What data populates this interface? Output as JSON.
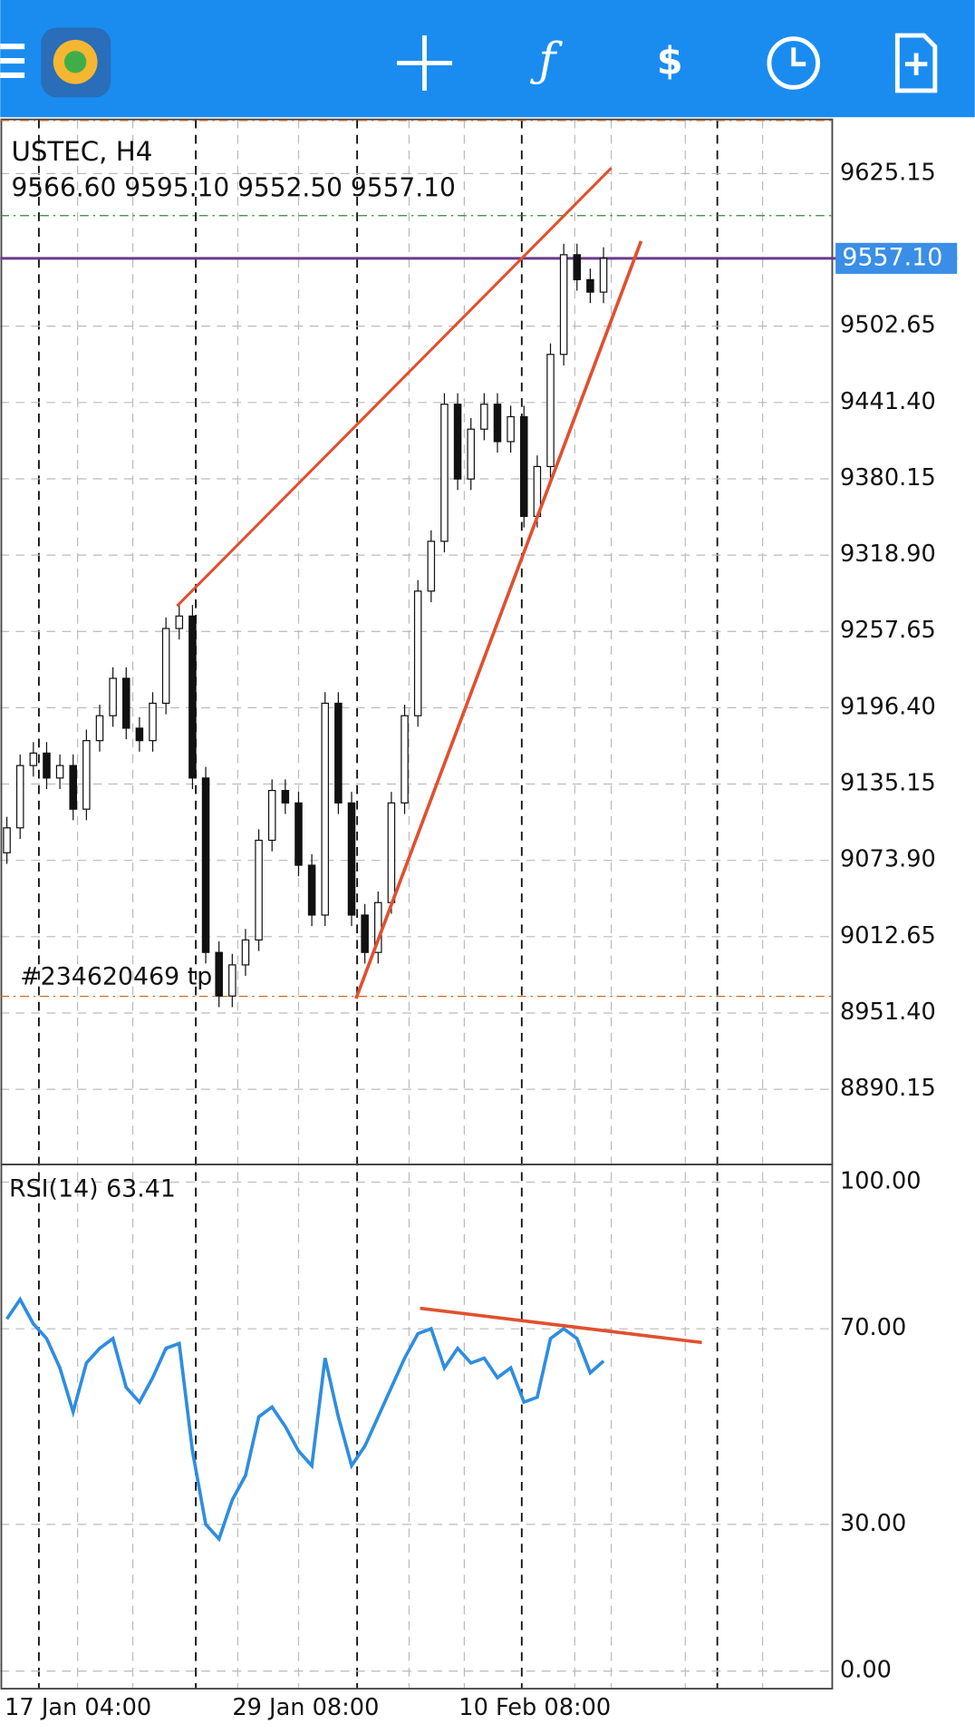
{
  "symbol_label": "USTEC, H4",
  "ohlc_label": "9566.60 9595.10 9552.50 9557.10",
  "order_label": "#234620469 tp",
  "price_panel": {
    "type": "candlestick",
    "ylim": [
      8829.8,
      9668.6
    ],
    "yticks": [
      {
        "value": 9625.15,
        "label": "9625.15"
      },
      {
        "value": 9502.65,
        "label": "9502.65"
      },
      {
        "value": 9441.4,
        "label": "9441.40"
      },
      {
        "value": 9380.15,
        "label": "9380.15"
      },
      {
        "value": 9318.9,
        "label": "9318.90"
      },
      {
        "value": 9257.65,
        "label": "9257.65"
      },
      {
        "value": 9196.4,
        "label": "9196.40"
      },
      {
        "value": 9135.15,
        "label": "9135.15"
      },
      {
        "value": 9073.9,
        "label": "9073.90"
      },
      {
        "value": 9012.65,
        "label": "9012.65"
      },
      {
        "value": 8951.4,
        "label": "8951.40"
      },
      {
        "value": 8890.15,
        "label": "8890.15"
      }
    ],
    "current_price": {
      "value": 9557.1,
      "label": "9557.10"
    },
    "open": [
      9080,
      9100,
      9150,
      9160,
      9140,
      9150,
      9115,
      9170,
      9190,
      9220,
      9180,
      9170,
      9200,
      9260,
      9270,
      9140,
      9000,
      8965,
      8990,
      9010,
      9090,
      9130,
      9120,
      9070,
      9030,
      9200,
      9120,
      9030,
      9000,
      9040,
      9120,
      9190,
      9290,
      9330,
      9440,
      9380,
      9420,
      9440,
      9410,
      9430,
      9350,
      9390,
      9480,
      9560,
      9540,
      9530
    ],
    "close": [
      9100,
      9150,
      9160,
      9140,
      9150,
      9115,
      9170,
      9190,
      9220,
      9180,
      9170,
      9200,
      9260,
      9270,
      9140,
      9000,
      8965,
      8990,
      9010,
      9090,
      9130,
      9120,
      9070,
      9030,
      9200,
      9120,
      9030,
      9000,
      9040,
      9120,
      9190,
      9290,
      9330,
      9440,
      9380,
      9420,
      9440,
      9410,
      9430,
      9350,
      9390,
      9480,
      9560,
      9540,
      9530,
      9557.1
    ]
  },
  "rsi_panel": {
    "type": "line",
    "label": "RSI(14) 63.41",
    "color": "#2e8de0",
    "ylim": [
      -3.6,
      103.6
    ],
    "yticks": [
      {
        "value": 100,
        "label": "100.00"
      },
      {
        "value": 70,
        "label": "70.00"
      },
      {
        "value": 30,
        "label": "30.00"
      },
      {
        "value": 0,
        "label": "0.00"
      }
    ],
    "values": [
      72,
      76,
      71,
      68,
      62,
      53,
      63,
      66,
      68,
      58,
      55,
      60,
      66,
      67,
      45,
      30,
      27,
      35,
      40,
      52,
      54,
      50,
      45,
      42,
      64,
      52,
      42,
      46,
      52,
      58,
      64,
      69,
      70,
      62,
      66,
      63,
      64,
      60,
      62,
      55,
      56,
      68,
      70,
      68,
      61,
      63.41
    ]
  },
  "date_labels": [
    "17 Jan 04:00",
    "29 Jan 08:00",
    "10 Feb 08:00"
  ]
}
